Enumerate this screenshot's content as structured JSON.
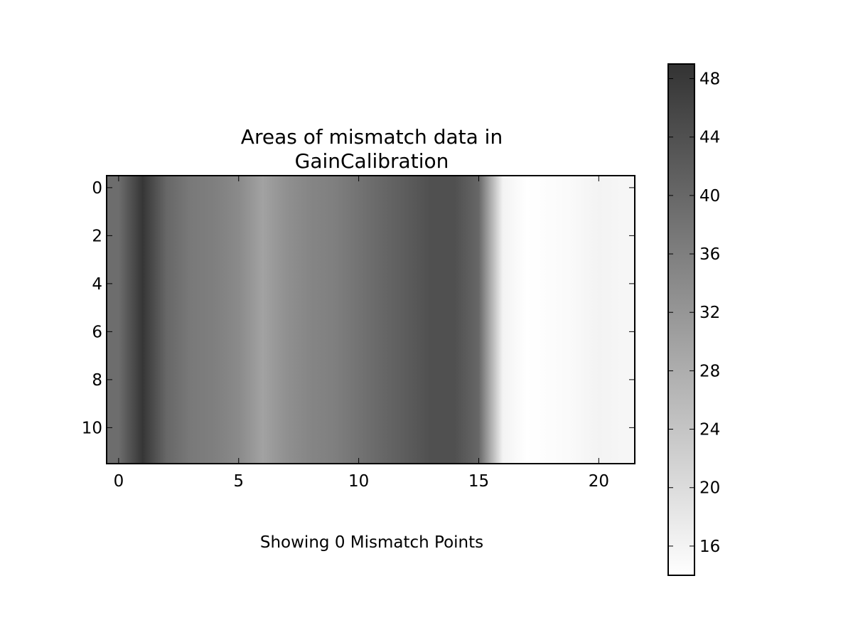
{
  "chart_data": {
    "type": "heatmap",
    "title_lines": [
      "Areas of mismatch data in",
      "GainCalibration"
    ],
    "xlabel": "Showing 0 Mismatch Points",
    "ylabel": "",
    "xlim": [
      -0.5,
      21.5
    ],
    "ylim": [
      11.5,
      -0.5
    ],
    "x_ticks": [
      0,
      5,
      10,
      15,
      20
    ],
    "y_ticks": [
      0,
      2,
      4,
      6,
      8,
      10
    ],
    "n_rows": 12,
    "n_cols": 22,
    "column_values": [
      39,
      48.5,
      40,
      37,
      36,
      34,
      30,
      33,
      35,
      36,
      38,
      40,
      42,
      44,
      44,
      40,
      16,
      14,
      14.5,
      15,
      16,
      15.5
    ],
    "interpolation": "smooth",
    "colorbar": {
      "cmap": "gray_r",
      "vmin": 14,
      "vmax": 49,
      "ticks": [
        16,
        20,
        24,
        28,
        32,
        36,
        40,
        44,
        48
      ]
    },
    "colors": {
      "low": "#ffffff",
      "high": "#333333"
    }
  }
}
